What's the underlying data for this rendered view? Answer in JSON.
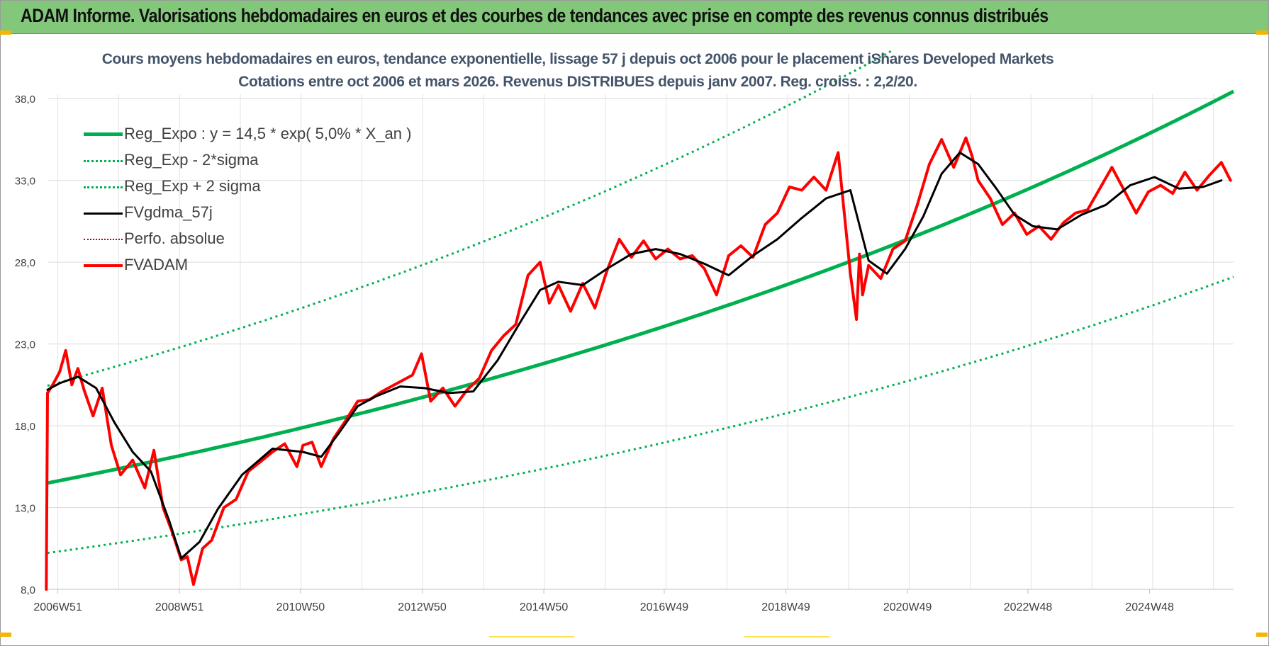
{
  "banner": {
    "title": "ADAM Informe. Valorisations hebdomadaires en euros et des courbes de tendances avec prise en compte des revenus connus distribués"
  },
  "chart_data": {
    "type": "line",
    "title_line1": "Cours moyens hebdomadaires en euros, tendance exponentielle, lissage 57 j depuis oct 2006 pour le placement iShares Developed Markets",
    "title_line2": "Cotations entre oct 2006 et mars 2026. Revenus DISTRIBUES depuis janv 2007. Reg. croiss. : 2,2/20.",
    "xlabel": "",
    "ylabel": "",
    "ylim": [
      8,
      40
    ],
    "y_ticks": [
      8,
      13,
      18,
      23,
      28,
      33,
      38
    ],
    "y_tick_labels": [
      "8,0",
      "13,0",
      "18,0",
      "23,0",
      "28,0",
      "33,0",
      "38,0"
    ],
    "x_range": [
      2006.8,
      2026.3
    ],
    "x_tick_labels": [
      "2006W51",
      "2008W51",
      "2010W50",
      "2012W50",
      "2014W50",
      "2016W49",
      "2018W49",
      "2020W49",
      "2022W48",
      "2024W48"
    ],
    "x_ticks": [
      2006.97,
      2008.97,
      2010.96,
      2012.96,
      2014.96,
      2016.94,
      2018.94,
      2020.94,
      2022.92,
      2024.92
    ],
    "grid": true,
    "legend_position": "top-left",
    "regression": {
      "a": 14.5,
      "rate": 0.05,
      "start": 2006.8,
      "sigma_factor_upper": 1.41,
      "sigma_factor_lower": 0.705
    },
    "series": [
      {
        "name": "Reg_Expo : y = 14,5 * exp( 5,0% *  X_an )",
        "color": "#00b050",
        "style": "solid",
        "width": 5
      },
      {
        "name": "Reg_Exp - 2*sigma",
        "color": "#00b050",
        "style": "dotted",
        "width": 3
      },
      {
        "name": "Reg_Exp + 2 sigma",
        "color": "#00b050",
        "style": "dotted",
        "width": 3
      },
      {
        "name": "FVgdma_57j",
        "color": "#000000",
        "style": "solid",
        "width": 3,
        "x": [
          2006.8,
          2007.0,
          2007.3,
          2007.6,
          2007.9,
          2008.2,
          2008.5,
          2008.8,
          2009.0,
          2009.3,
          2009.6,
          2010.0,
          2010.5,
          2011.0,
          2011.3,
          2011.6,
          2011.9,
          2012.2,
          2012.6,
          2013.0,
          2013.4,
          2013.8,
          2014.2,
          2014.6,
          2014.9,
          2015.2,
          2015.6,
          2016.0,
          2016.4,
          2016.8,
          2017.2,
          2017.6,
          2018.0,
          2018.4,
          2018.8,
          2019.2,
          2019.6,
          2020.0,
          2020.3,
          2020.6,
          2020.9,
          2021.2,
          2021.5,
          2021.8,
          2022.1,
          2022.4,
          2022.7,
          2023.0,
          2023.4,
          2023.8,
          2024.2,
          2024.6,
          2025.0,
          2025.4,
          2025.8,
          2026.1
        ],
        "y": [
          20.2,
          20.6,
          21.0,
          20.3,
          18.2,
          16.4,
          15.2,
          12.2,
          9.9,
          10.9,
          12.9,
          15.0,
          16.6,
          16.4,
          16.1,
          17.6,
          19.2,
          19.8,
          20.4,
          20.3,
          20.0,
          20.1,
          22.0,
          24.5,
          26.3,
          26.8,
          26.6,
          27.6,
          28.5,
          28.8,
          28.5,
          27.9,
          27.2,
          28.4,
          29.4,
          30.7,
          31.9,
          32.4,
          28.1,
          27.3,
          28.8,
          30.8,
          33.4,
          34.7,
          34.0,
          32.5,
          30.9,
          30.2,
          30.0,
          30.9,
          31.5,
          32.7,
          33.2,
          32.5,
          32.6,
          33.0
        ]
      },
      {
        "name": "Perfo. absolue",
        "color": "#c00000",
        "style": "dotted",
        "width": 2
      },
      {
        "name": "FVADAM",
        "color": "#ff0000",
        "style": "solid",
        "width": 4,
        "x": [
          2006.78,
          2006.8,
          2006.9,
          2007.0,
          2007.1,
          2007.2,
          2007.3,
          2007.4,
          2007.55,
          2007.7,
          2007.85,
          2008.0,
          2008.2,
          2008.4,
          2008.55,
          2008.7,
          2008.85,
          2009.0,
          2009.1,
          2009.2,
          2009.35,
          2009.5,
          2009.7,
          2009.9,
          2010.1,
          2010.3,
          2010.5,
          2010.7,
          2010.9,
          2011.0,
          2011.15,
          2011.3,
          2011.5,
          2011.7,
          2011.9,
          2012.1,
          2012.3,
          2012.6,
          2012.8,
          2012.95,
          2013.1,
          2013.3,
          2013.5,
          2013.7,
          2013.9,
          2014.1,
          2014.3,
          2014.5,
          2014.7,
          2014.9,
          2015.05,
          2015.2,
          2015.4,
          2015.6,
          2015.8,
          2016.0,
          2016.2,
          2016.4,
          2016.6,
          2016.8,
          2017.0,
          2017.2,
          2017.4,
          2017.6,
          2017.8,
          2018.0,
          2018.2,
          2018.4,
          2018.6,
          2018.8,
          2019.0,
          2019.2,
          2019.4,
          2019.6,
          2019.8,
          2020.0,
          2020.1,
          2020.15,
          2020.2,
          2020.3,
          2020.5,
          2020.7,
          2020.9,
          2021.1,
          2021.3,
          2021.5,
          2021.7,
          2021.9,
          2022.0,
          2022.1,
          2022.3,
          2022.5,
          2022.7,
          2022.9,
          2023.1,
          2023.3,
          2023.5,
          2023.7,
          2023.9,
          2024.1,
          2024.3,
          2024.5,
          2024.7,
          2024.9,
          2025.1,
          2025.3,
          2025.5,
          2025.7,
          2025.9,
          2026.1,
          2026.25
        ],
        "y": [
          8.0,
          20.0,
          20.6,
          21.3,
          22.6,
          20.5,
          21.5,
          20.2,
          18.6,
          20.3,
          16.8,
          15.0,
          15.9,
          14.2,
          16.5,
          13.0,
          11.5,
          9.8,
          10.0,
          8.3,
          10.5,
          11.0,
          13.0,
          13.5,
          15.2,
          15.8,
          16.4,
          16.9,
          15.5,
          16.8,
          17.0,
          15.5,
          17.2,
          18.3,
          19.5,
          19.6,
          20.1,
          20.7,
          21.1,
          22.4,
          19.5,
          20.3,
          19.2,
          20.2,
          20.9,
          22.6,
          23.5,
          24.2,
          27.2,
          28.0,
          25.5,
          26.6,
          25.0,
          26.7,
          25.2,
          27.5,
          29.4,
          28.3,
          29.3,
          28.2,
          28.8,
          28.2,
          28.4,
          27.6,
          26.0,
          28.4,
          29.0,
          28.3,
          30.3,
          31.0,
          32.6,
          32.4,
          33.2,
          32.4,
          34.7,
          27.3,
          24.5,
          28.5,
          26.0,
          27.8,
          27.0,
          28.8,
          29.3,
          31.5,
          34.0,
          35.5,
          33.8,
          35.6,
          34.5,
          33.0,
          31.9,
          30.3,
          31.0,
          29.7,
          30.2,
          29.4,
          30.4,
          31.0,
          31.2,
          32.5,
          33.8,
          32.4,
          31.0,
          32.3,
          32.7,
          32.2,
          33.5,
          32.4,
          33.3,
          34.1,
          33.0
        ]
      }
    ]
  }
}
